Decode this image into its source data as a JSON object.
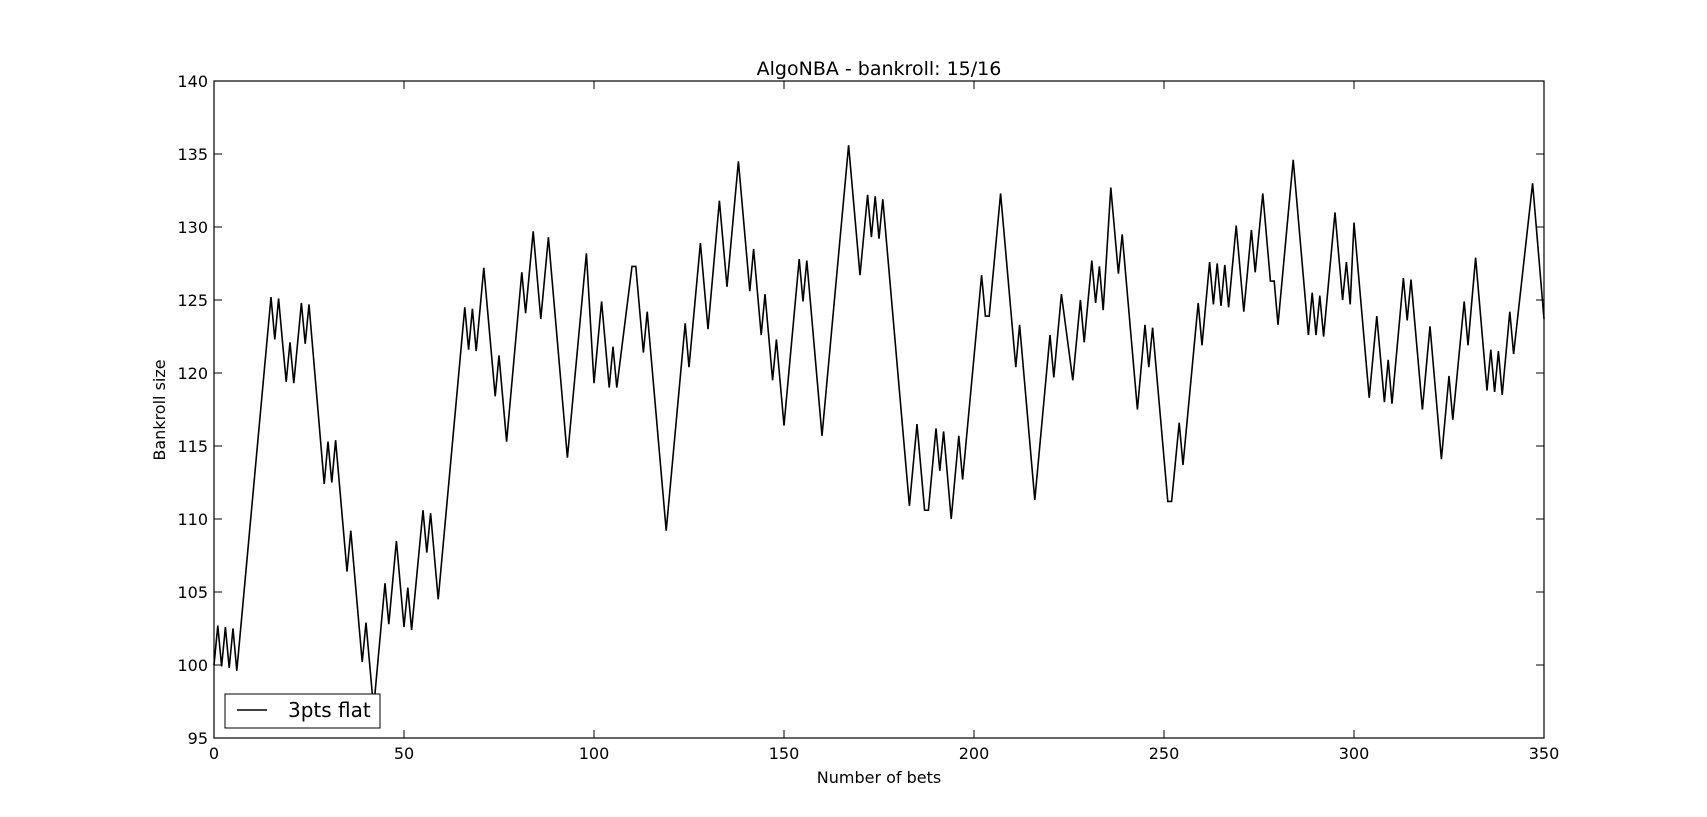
{
  "chart_data": {
    "type": "line",
    "title": "AlgoNBA - bankroll: 15/16",
    "xlabel": "Number of bets",
    "ylabel": "Bankroll size",
    "xlim": [
      0,
      350
    ],
    "ylim": [
      95,
      140
    ],
    "xticks": [
      0,
      50,
      100,
      150,
      200,
      250,
      300,
      350
    ],
    "yticks": [
      95,
      100,
      105,
      110,
      115,
      120,
      125,
      130,
      135,
      140
    ],
    "grid": false,
    "legend_position": "lower-left",
    "line_color": "#000000",
    "series": [
      {
        "name": "3pts flat",
        "points": [
          [
            0,
            100
          ],
          [
            1,
            102.7
          ],
          [
            2,
            99.9
          ],
          [
            3,
            102.6
          ],
          [
            4,
            99.8
          ],
          [
            5,
            102.5
          ],
          [
            6,
            99.6
          ],
          [
            15,
            125.2
          ],
          [
            16,
            122.3
          ],
          [
            17,
            125.1
          ],
          [
            18,
            122.2
          ],
          [
            19,
            119.4
          ],
          [
            20,
            122.1
          ],
          [
            21,
            119.3
          ],
          [
            23,
            124.8
          ],
          [
            24,
            122
          ],
          [
            25,
            124.7
          ],
          [
            29,
            112.4
          ],
          [
            30,
            115.3
          ],
          [
            31,
            112.5
          ],
          [
            32,
            115.4
          ],
          [
            35,
            106.4
          ],
          [
            36,
            109.2
          ],
          [
            39,
            100.2
          ],
          [
            40,
            102.9
          ],
          [
            42,
            97
          ],
          [
            45,
            105.6
          ],
          [
            46,
            102.8
          ],
          [
            48,
            108.5
          ],
          [
            50,
            102.6
          ],
          [
            51,
            105.3
          ],
          [
            52,
            102.4
          ],
          [
            55,
            110.6
          ],
          [
            56,
            107.7
          ],
          [
            57,
            110.4
          ],
          [
            59,
            104.5
          ],
          [
            66,
            124.5
          ],
          [
            67,
            121.6
          ],
          [
            68,
            124.4
          ],
          [
            69,
            121.5
          ],
          [
            71,
            127.2
          ],
          [
            74,
            118.4
          ],
          [
            75,
            121.2
          ],
          [
            77,
            115.3
          ],
          [
            81,
            126.9
          ],
          [
            82,
            124.1
          ],
          [
            84,
            129.7
          ],
          [
            86,
            123.7
          ],
          [
            88,
            129.3
          ],
          [
            93,
            114.2
          ],
          [
            98,
            128.2
          ],
          [
            100,
            119.3
          ],
          [
            102,
            124.9
          ],
          [
            104,
            119
          ],
          [
            105,
            121.8
          ],
          [
            106,
            119
          ],
          [
            110,
            127.3
          ],
          [
            111,
            127.3
          ],
          [
            113,
            121.4
          ],
          [
            114,
            124.2
          ],
          [
            119,
            109.2
          ],
          [
            124,
            123.4
          ],
          [
            125,
            120.4
          ],
          [
            128,
            128.9
          ],
          [
            130,
            123
          ],
          [
            133,
            131.8
          ],
          [
            135,
            125.9
          ],
          [
            138,
            134.5
          ],
          [
            141,
            125.6
          ],
          [
            142,
            128.5
          ],
          [
            144,
            122.6
          ],
          [
            145,
            125.4
          ],
          [
            147,
            119.5
          ],
          [
            148,
            122.3
          ],
          [
            150,
            116.4
          ],
          [
            154,
            127.8
          ],
          [
            155,
            124.9
          ],
          [
            156,
            127.7
          ],
          [
            160,
            115.7
          ],
          [
            167,
            135.6
          ],
          [
            170,
            126.7
          ],
          [
            172,
            132.2
          ],
          [
            173,
            129.3
          ],
          [
            174,
            132.1
          ],
          [
            175,
            129.2
          ],
          [
            176,
            131.9
          ],
          [
            183,
            110.9
          ],
          [
            185,
            116.5
          ],
          [
            187,
            110.6
          ],
          [
            188,
            110.6
          ],
          [
            190,
            116.2
          ],
          [
            191,
            113.3
          ],
          [
            192,
            116
          ],
          [
            194,
            110
          ],
          [
            196,
            115.7
          ],
          [
            197,
            112.7
          ],
          [
            202,
            126.7
          ],
          [
            203,
            123.9
          ],
          [
            204,
            123.9
          ],
          [
            207,
            132.3
          ],
          [
            211,
            120.4
          ],
          [
            212,
            123.3
          ],
          [
            216,
            111.3
          ],
          [
            220,
            122.6
          ],
          [
            221,
            119.7
          ],
          [
            223,
            125.4
          ],
          [
            226,
            119.5
          ],
          [
            228,
            125
          ],
          [
            229,
            122.1
          ],
          [
            231,
            127.7
          ],
          [
            232,
            124.8
          ],
          [
            233,
            127.3
          ],
          [
            234,
            124.3
          ],
          [
            236,
            132.7
          ],
          [
            238,
            126.8
          ],
          [
            239,
            129.5
          ],
          [
            243,
            117.5
          ],
          [
            245,
            123.3
          ],
          [
            246,
            120.4
          ],
          [
            247,
            123.1
          ],
          [
            251,
            111.2
          ],
          [
            252,
            111.2
          ],
          [
            254,
            116.6
          ],
          [
            255,
            113.7
          ],
          [
            259,
            124.8
          ],
          [
            260,
            121.9
          ],
          [
            262,
            127.6
          ],
          [
            263,
            124.7
          ],
          [
            264,
            127.5
          ],
          [
            265,
            124.6
          ],
          [
            266,
            127.4
          ],
          [
            267,
            124.5
          ],
          [
            269,
            130.1
          ],
          [
            271,
            124.2
          ],
          [
            273,
            129.8
          ],
          [
            274,
            126.9
          ],
          [
            276,
            132.3
          ],
          [
            278,
            126.3
          ],
          [
            279,
            126.3
          ],
          [
            280,
            123.3
          ],
          [
            284,
            134.6
          ],
          [
            288,
            122.6
          ],
          [
            289,
            125.5
          ],
          [
            290,
            122.6
          ],
          [
            291,
            125.3
          ],
          [
            292,
            122.5
          ],
          [
            295,
            131
          ],
          [
            297,
            125
          ],
          [
            298,
            127.6
          ],
          [
            299,
            124.7
          ],
          [
            300,
            130.3
          ],
          [
            304,
            118.3
          ],
          [
            306,
            123.9
          ],
          [
            308,
            118
          ],
          [
            309,
            120.9
          ],
          [
            310,
            117.9
          ],
          [
            313,
            126.5
          ],
          [
            314,
            123.6
          ],
          [
            315,
            126.4
          ],
          [
            318,
            117.5
          ],
          [
            320,
            123.2
          ],
          [
            323,
            114.1
          ],
          [
            325,
            119.8
          ],
          [
            326,
            116.8
          ],
          [
            329,
            124.9
          ],
          [
            330,
            121.9
          ],
          [
            332,
            127.9
          ],
          [
            335,
            118.8
          ],
          [
            336,
            121.6
          ],
          [
            337,
            118.7
          ],
          [
            338,
            121.5
          ],
          [
            339,
            118.5
          ],
          [
            341,
            124.2
          ],
          [
            342,
            121.3
          ],
          [
            347,
            133
          ],
          [
            350,
            123.7
          ]
        ]
      }
    ]
  }
}
